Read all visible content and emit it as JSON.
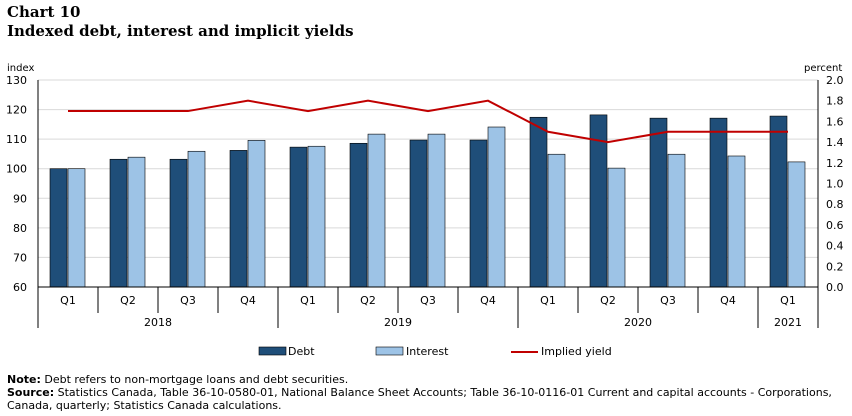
{
  "header": {
    "title": "Chart 10",
    "subtitle": "Indexed debt, interest and implicit  yields"
  },
  "notes": {
    "note_label": "Note:",
    "note_text": "Debt refers to non-mortgage loans and debt securities.",
    "source_label": "Source:",
    "source_text": "Statistics Canada, Table 36-10-0580-01, National Balance Sheet Accounts; Table 36-10-0116-01 Current and capital accounts - Corporations, Canada, quarterly; Statistics Canada calculations."
  },
  "colors": {
    "debt": "#1f4e79",
    "interest": "#9dc3e6",
    "implied_yield": "#c00000"
  },
  "chart_data": {
    "type": "bar",
    "categories": [
      "Q1",
      "Q2",
      "Q3",
      "Q4",
      "Q1",
      "Q2",
      "Q3",
      "Q4",
      "Q1",
      "Q2",
      "Q3",
      "Q4",
      "Q1"
    ],
    "years": [
      {
        "label": "2018",
        "span": 4
      },
      {
        "label": "2019",
        "span": 4
      },
      {
        "label": "2020",
        "span": 4
      },
      {
        "label": "2021",
        "span": 1
      }
    ],
    "series": [
      {
        "name": "Debt",
        "type": "bar",
        "axis": "left",
        "values": [
          100,
          103.2,
          103.2,
          106.2,
          107.3,
          108.6,
          109.7,
          109.7,
          117.4,
          118.2,
          117.1,
          117.1,
          117.8
        ]
      },
      {
        "name": "Interest",
        "type": "bar",
        "axis": "left",
        "values": [
          100,
          103.9,
          105.9,
          109.6,
          107.6,
          111.7,
          111.7,
          114.1,
          104.9,
          100.2,
          104.9,
          104.3,
          102.3
        ]
      },
      {
        "name": "Implied yield",
        "type": "line",
        "axis": "right",
        "values": [
          1.7,
          1.7,
          1.7,
          1.8,
          1.7,
          1.8,
          1.7,
          1.8,
          1.5,
          1.4,
          1.5,
          1.5,
          1.5
        ]
      }
    ],
    "ylabel": "index",
    "y2label": "percent",
    "ylim": [
      60,
      130
    ],
    "yticks": [
      60,
      70,
      80,
      90,
      100,
      110,
      120,
      130
    ],
    "y2lim": [
      0,
      2.0
    ],
    "y2ticks": [
      "0.0",
      "0.2",
      "0.4",
      "0.6",
      "0.8",
      "1.0",
      "1.2",
      "1.4",
      "1.6",
      "1.8",
      "2.0"
    ],
    "grid": true,
    "legend_position": "bottom"
  }
}
